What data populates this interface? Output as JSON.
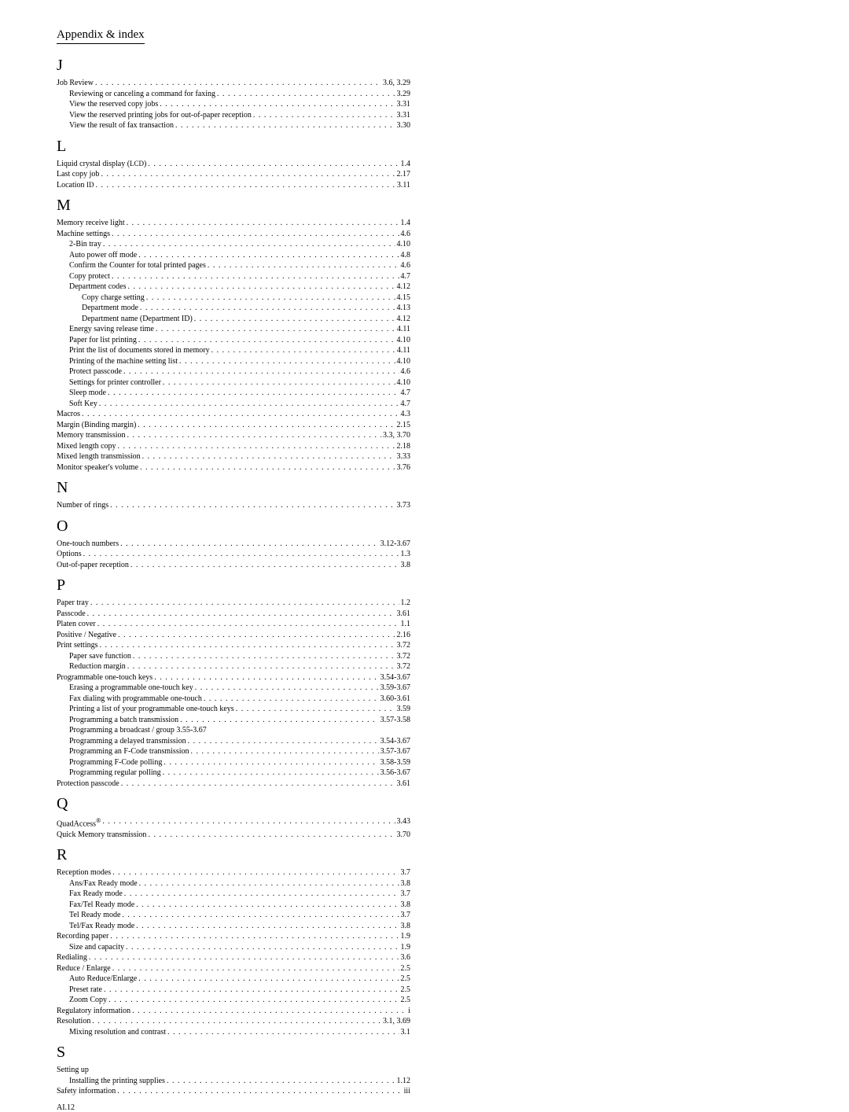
{
  "header": "Appendix & index",
  "footer": "AI.12",
  "sections": [
    {
      "letter": "J",
      "entries": [
        {
          "label": "Job Review",
          "page": "3.6, 3.29",
          "indent": 0
        },
        {
          "label": "Reviewing or canceling a command for faxing",
          "page": "3.29",
          "indent": 1
        },
        {
          "label": "View the reserved copy jobs",
          "page": "3.31",
          "indent": 1
        },
        {
          "label": "View the reserved printing jobs for out-of-paper reception",
          "page": "3.31",
          "indent": 1
        },
        {
          "label": "View the result of fax transaction",
          "page": "3.30",
          "indent": 1
        }
      ]
    },
    {
      "letter": "L",
      "entries": [
        {
          "label_html": "Liquid crystal display (<span class=\"smallcap\">LCD</span>)",
          "page": "1.4",
          "indent": 0
        },
        {
          "label": "Last copy job",
          "page": "2.17",
          "indent": 0
        },
        {
          "label_html": "Location <span class=\"smallcap\">ID</span>",
          "page": "3.11",
          "indent": 0
        }
      ]
    },
    {
      "letter": "M",
      "entries": [
        {
          "label": "Memory receive light",
          "page": "1.4",
          "indent": 0
        },
        {
          "label": "Machine settings",
          "page": "4.6",
          "indent": 0
        },
        {
          "label": "2-Bin tray",
          "page": "4.10",
          "indent": 1
        },
        {
          "label": "Auto power off mode",
          "page": "4.8",
          "indent": 1
        },
        {
          "label": "Confirm the Counter for total printed pages",
          "page": "4.6",
          "indent": 1
        },
        {
          "label": "Copy protect",
          "page": "4.7",
          "indent": 1
        },
        {
          "label": "Department codes",
          "page": "4.12",
          "indent": 1
        },
        {
          "label": "Copy charge setting",
          "page": "4.15",
          "indent": 2
        },
        {
          "label": "Department mode",
          "page": "4.13",
          "indent": 2
        },
        {
          "label": "Department name (Department ID)",
          "page": "4.12",
          "indent": 2
        },
        {
          "label": "Energy saving release time",
          "page": "4.11",
          "indent": 1
        },
        {
          "label": "Paper for list printing",
          "page": "4.10",
          "indent": 1
        },
        {
          "label": "Print the list of documents stored in memory",
          "page": "4.11",
          "indent": 1
        },
        {
          "label": "Printing of the machine setting list",
          "page": "4.10",
          "indent": 1
        },
        {
          "label": "Protect passcode",
          "page": "4.6",
          "indent": 1
        },
        {
          "label": "Settings for printer controller",
          "page": "4.10",
          "indent": 1
        },
        {
          "label": "Sleep mode",
          "page": "4.7",
          "indent": 1
        },
        {
          "label": "Soft Key",
          "page": "4.7",
          "indent": 1
        },
        {
          "label": "Macros",
          "page": "4.3",
          "indent": 0
        },
        {
          "label": "Margin (Binding margin)",
          "page": "2.15",
          "indent": 0
        },
        {
          "label": "Memory transmission",
          "page": "3.3, 3.70",
          "indent": 0
        },
        {
          "label": "Mixed length copy",
          "page": "2.18",
          "indent": 0
        },
        {
          "label": "Mixed length transmission",
          "page": "3.33",
          "indent": 0
        },
        {
          "label": "Monitor speaker's volume",
          "page": "3.76",
          "indent": 0
        }
      ]
    },
    {
      "letter": "N",
      "entries": [
        {
          "label": "Number of rings",
          "page": "3.73",
          "indent": 0
        }
      ]
    },
    {
      "letter": "O",
      "entries": [
        {
          "label": "One-touch numbers",
          "page": "3.12-3.67",
          "indent": 0
        },
        {
          "label": "Options",
          "page": "1.3",
          "indent": 0
        },
        {
          "label": "Out-of-paper reception",
          "page": "3.8",
          "indent": 0
        }
      ]
    },
    {
      "letter": "P",
      "entries": [
        {
          "label": "Paper tray",
          "page": "1.2",
          "indent": 0
        },
        {
          "label": "Passcode",
          "page": "3.61",
          "indent": 0
        },
        {
          "label": "Platen cover",
          "page": "1.1",
          "indent": 0
        },
        {
          "label": "Positive / Negative",
          "page": "2.16",
          "indent": 0
        },
        {
          "label": "Print settings",
          "page": "3.72",
          "indent": 0
        },
        {
          "label": "Paper save function",
          "page": "3.72",
          "indent": 1
        },
        {
          "label": "Reduction margin",
          "page": "3.72",
          "indent": 1
        },
        {
          "label": "Programmable one-touch keys",
          "page": "3.54-3.67",
          "indent": 0
        },
        {
          "label": "Erasing a programmable one-touch key",
          "page": "3.59-3.67",
          "indent": 1
        },
        {
          "label": "Fax dialing with programmable one-touch",
          "page": "3.60-3.61",
          "indent": 1
        },
        {
          "label": "Printing a list of your programmable one-touch keys",
          "page": "3.59",
          "indent": 1
        },
        {
          "label": "Programming a batch transmission",
          "page": "3.57-3.58",
          "indent": 1
        },
        {
          "label": "Programming a broadcast / group 3.55-3.67",
          "indent": 1,
          "nopage": true
        },
        {
          "label": "Programming a delayed transmission",
          "page": "3.54-3.67",
          "indent": 1
        },
        {
          "label": "Programming an F-Code transmission",
          "page": "3.57-3.67",
          "indent": 1
        },
        {
          "label": "Programming F-Code polling",
          "page": "3.58-3.59",
          "indent": 1
        },
        {
          "label": "Programming regular polling",
          "page": "3.56-3.67",
          "indent": 1
        },
        {
          "label": "Protection passcode",
          "page": "3.61",
          "indent": 0
        }
      ]
    },
    {
      "letter": "Q",
      "entries": [
        {
          "label_html": "QuadAccess<sup>®</sup>",
          "page": "3.43",
          "indent": 0
        },
        {
          "label": "Quick Memory transmission",
          "page": "3.70",
          "indent": 0
        }
      ]
    },
    {
      "letter": "R",
      "entries": [
        {
          "label": "Reception modes",
          "page": "3.7",
          "indent": 0
        },
        {
          "label": "Ans/Fax Ready mode",
          "page": "3.8",
          "indent": 1
        },
        {
          "label": "Fax Ready mode",
          "page": "3.7",
          "indent": 1
        },
        {
          "label": "Fax/Tel Ready mode",
          "page": "3.8",
          "indent": 1
        },
        {
          "label": "Tel Ready mode",
          "page": "3.7",
          "indent": 1
        },
        {
          "label": "Tel/Fax Ready mode",
          "page": "3.8",
          "indent": 1
        },
        {
          "label": "Recording paper",
          "page": "1.9",
          "indent": 0
        },
        {
          "label": "Size and capacity",
          "page": "1.9",
          "indent": 1
        },
        {
          "label": "Redialing",
          "page": "3.6",
          "indent": 0
        },
        {
          "label": "Reduce / Enlarge",
          "page": "2.5",
          "indent": 0
        },
        {
          "label": "Auto Reduce/Enlarge",
          "page": "2.5",
          "indent": 1
        },
        {
          "label": "Preset rate",
          "page": "2.5",
          "indent": 1
        },
        {
          "label": "Zoom Copy",
          "page": "2.5",
          "indent": 1
        },
        {
          "label": "Regulatory information",
          "page": "i",
          "indent": 0
        },
        {
          "label": "Resolution",
          "page": "3.1, 3.69",
          "indent": 0
        },
        {
          "label": "Mixing resolution and contrast",
          "page": "3.1",
          "indent": 1
        }
      ]
    },
    {
      "letter": "S",
      "entries": [
        {
          "label": "Setting up",
          "indent": 0,
          "nopage": true
        },
        {
          "label": "Installing the printing supplies",
          "page": "1.12",
          "indent": 1
        },
        {
          "label": "Safety information",
          "page": "iii",
          "indent": 0
        }
      ]
    }
  ]
}
